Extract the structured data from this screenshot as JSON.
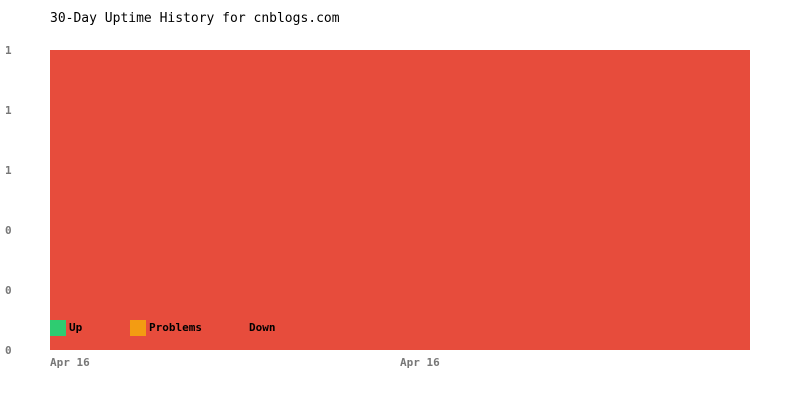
{
  "chart_data": {
    "type": "area",
    "stacked": true,
    "title": "30-Day Uptime History for cnblogs.com",
    "x": [
      "Apr 16",
      "Apr 16"
    ],
    "x_tick_labels": [
      "Apr 16",
      "Apr 16"
    ],
    "y_tick_labels": [
      "0",
      "0",
      "0",
      "1",
      "1",
      "1"
    ],
    "ylim": [
      0,
      1
    ],
    "grid": false,
    "legend_placement": "bottom-left",
    "series": [
      {
        "name": "Up",
        "color": "#2ecc71",
        "values": [
          0,
          0
        ]
      },
      {
        "name": "Problems",
        "color": "#f39c12",
        "values": [
          0,
          0
        ]
      },
      {
        "name": "Down",
        "color": "#e74c3c",
        "values": [
          1,
          1
        ]
      }
    ]
  }
}
